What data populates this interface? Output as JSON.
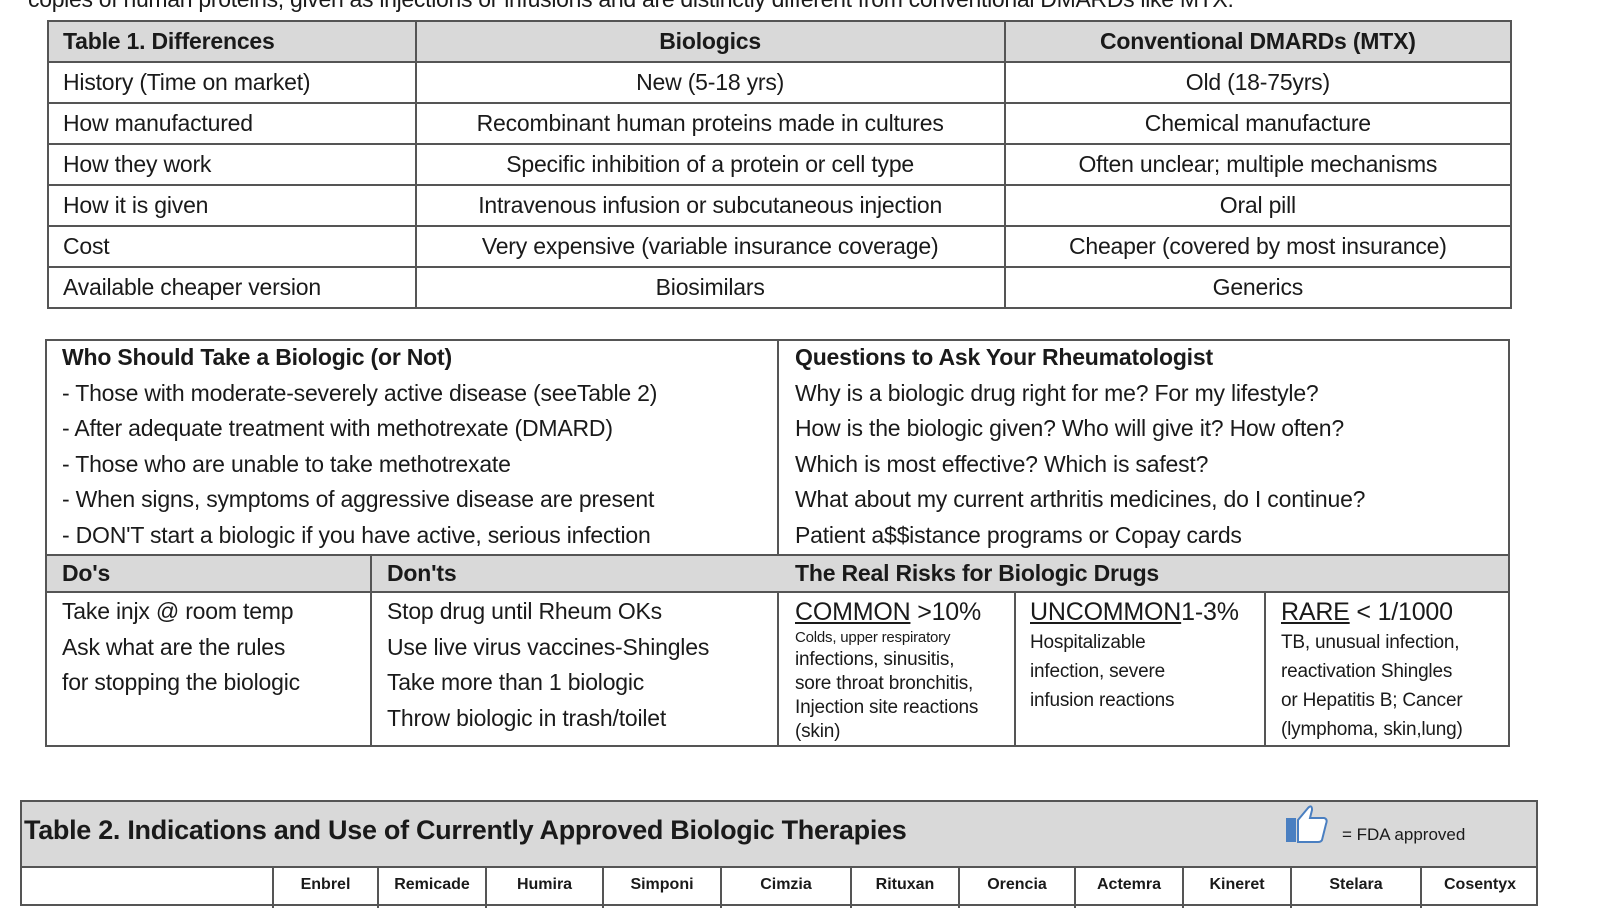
{
  "intro_line": "copies of human proteins, given as injections or infusions and are distinctly different from conventional DMARDs like MTX.",
  "table1": {
    "headers": [
      "Table 1. Differences",
      "Biologics",
      "Conventional DMARDs (MTX)"
    ],
    "rows": [
      [
        "History (Time on market)",
        "New (5-18 yrs)",
        "Old (18-75yrs)"
      ],
      [
        "How manufactured",
        "Recombinant human proteins made in cultures",
        "Chemical manufacture"
      ],
      [
        "How they work",
        "Specific inhibition of a protein or cell type",
        "Often unclear; multiple mechanisms"
      ],
      [
        "How it is given",
        "Intravenous infusion or subcutaneous  injection",
        "Oral pill"
      ],
      [
        "Cost",
        "Very expensive (variable insurance  coverage)",
        "Cheaper  (covered by most insurance)"
      ],
      [
        "Available cheaper  version",
        "Biosimilars",
        "Generics"
      ]
    ]
  },
  "who": {
    "title": "Who Should Take a Biologic (or Not)",
    "items": [
      "- Those with moderate-severely active disease (seeTable 2)",
      "- After adequate treatment with methotrexate (DMARD)",
      "- Those who are unable  to take methotrexate",
      "- When signs, symptoms of aggressive disease are present",
      "- DON'T start a biologic if you have active, serious infection"
    ]
  },
  "questions": {
    "title": "Questions to Ask Your Rheumatologist",
    "items": [
      "Why is a biologic drug right for me? For my lifestyle?",
      "How is the biologic given? Who will give it? How often?",
      "Which is most effective?   Which is safest?",
      "What about my current arthritis medicines, do I continue?",
      "Patient a$$istance programs or Copay cards"
    ]
  },
  "dos": {
    "title": "Do's",
    "items": [
      "Take injx @ room temp",
      "Ask what are the rules",
      "for stopping the biologic"
    ]
  },
  "donts": {
    "title": "Don'ts",
    "items": [
      "Stop drug until Rheum OKs",
      "Use live virus vaccines-Shingles",
      "Take more than 1 biologic",
      "Throw biologic in trash/toilet"
    ]
  },
  "risks": {
    "title": "The Real Risks for Biologic Drugs",
    "common": {
      "label": "COMMON",
      "value": " >10%",
      "line1": "Colds,  upper respiratory",
      "rest": [
        "infections, sinusitis,",
        "sore throat bronchitis,",
        "Injection site reactions",
        "(skin)"
      ]
    },
    "uncommon": {
      "label": "UNCOMMON",
      "value": "1-3%",
      "rest": [
        "Hospitalizable",
        "infection,  severe",
        "infusion  reactions"
      ]
    },
    "rare": {
      "label": "RARE",
      "value": " < 1/1000",
      "rest": [
        "TB, unusual  infection,",
        "reactivation  Shingles",
        "or Hepatitis B; Cancer",
        "(lymphoma,  skin,lung)"
      ]
    }
  },
  "table2": {
    "title": "Table 2.  Indications and Use of Currently Approved Biologic Therapies",
    "legend": "= FDA approved",
    "legend_icon": "thumbs-up-icon",
    "icon_color": "#4a7fc1",
    "columns": [
      "",
      "Enbrel",
      "Remicade",
      "Humira",
      "Simponi",
      "Cimzia",
      "Rituxan",
      "Orencia",
      "Actemra",
      "Kineret",
      "Stelara",
      "Cosentyx"
    ]
  }
}
